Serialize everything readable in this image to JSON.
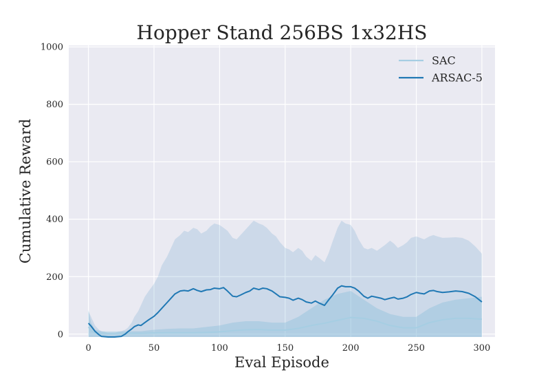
{
  "colors": {
    "figure_background": "#ffffff",
    "plot_background": "#eaeaf2",
    "grid": "#ffffff",
    "text": "#262626"
  },
  "chart_data": {
    "type": "line",
    "title": "Hopper Stand 256BS 1x32HS",
    "xlabel": "Eval Episode",
    "ylabel": "Cumulative Reward",
    "xlim": [
      -15,
      310
    ],
    "ylim": [
      -10,
      1005
    ],
    "xticks": [
      0,
      50,
      100,
      150,
      200,
      250,
      300
    ],
    "yticks": [
      0,
      200,
      400,
      600,
      800,
      1000
    ],
    "grid": true,
    "legend_position": "top-right",
    "series": [
      {
        "name": "SAC",
        "color": "#a6cee3",
        "band_color": "#a6cee3",
        "band_opacity": 0.45,
        "x": [
          0,
          2,
          5,
          10,
          15,
          20,
          25,
          30,
          40,
          50,
          60,
          70,
          80,
          90,
          100,
          110,
          120,
          130,
          140,
          150,
          160,
          170,
          180,
          190,
          200,
          210,
          220,
          230,
          240,
          250,
          260,
          270,
          280,
          290,
          300
        ],
        "mean": [
          25,
          12,
          4,
          3,
          3,
          3,
          3,
          3,
          3,
          4,
          5,
          5,
          5,
          6,
          8,
          12,
          15,
          16,
          14,
          14,
          20,
          30,
          38,
          48,
          58,
          55,
          45,
          30,
          22,
          22,
          40,
          50,
          55,
          55,
          52
        ],
        "lower": [
          -10,
          -10,
          -10,
          -10,
          -10,
          -10,
          -10,
          -10,
          -10,
          -10,
          -10,
          -10,
          -10,
          -10,
          -10,
          -10,
          -10,
          -10,
          -10,
          -10,
          -10,
          -10,
          -10,
          -10,
          -10,
          -10,
          -10,
          -10,
          -10,
          -10,
          -10,
          -10,
          -10,
          -10,
          -10
        ],
        "upper": [
          85,
          40,
          15,
          10,
          10,
          10,
          10,
          10,
          10,
          15,
          18,
          20,
          20,
          25,
          30,
          40,
          45,
          45,
          40,
          40,
          60,
          90,
          120,
          140,
          150,
          120,
          90,
          70,
          60,
          60,
          90,
          110,
          120,
          125,
          130
        ]
      },
      {
        "name": "ARSAC-5",
        "color": "#1f78b4",
        "band_color": "#1f78b4",
        "band_opacity": 0.15,
        "x": [
          0,
          2,
          5,
          8,
          10,
          15,
          20,
          25,
          28,
          30,
          33,
          35,
          38,
          40,
          43,
          46,
          50,
          53,
          56,
          60,
          63,
          66,
          70,
          73,
          76,
          80,
          83,
          86,
          90,
          93,
          96,
          100,
          103,
          106,
          110,
          113,
          116,
          120,
          123,
          126,
          130,
          133,
          136,
          140,
          143,
          146,
          150,
          153,
          156,
          160,
          163,
          166,
          170,
          173,
          176,
          180,
          183,
          186,
          190,
          193,
          196,
          200,
          203,
          206,
          210,
          213,
          216,
          220,
          223,
          226,
          230,
          233,
          236,
          240,
          243,
          246,
          250,
          253,
          256,
          260,
          263,
          266,
          270,
          275,
          280,
          285,
          290,
          295,
          300
        ],
        "mean": [
          38,
          28,
          10,
          -2,
          -8,
          -15,
          -15,
          -8,
          0,
          8,
          18,
          26,
          32,
          30,
          40,
          50,
          62,
          75,
          90,
          110,
          125,
          140,
          150,
          152,
          150,
          158,
          152,
          148,
          154,
          155,
          160,
          158,
          162,
          150,
          132,
          130,
          136,
          145,
          150,
          160,
          155,
          160,
          158,
          150,
          140,
          130,
          128,
          125,
          118,
          125,
          120,
          112,
          108,
          115,
          108,
          100,
          118,
          135,
          160,
          168,
          165,
          165,
          160,
          150,
          132,
          125,
          132,
          128,
          125,
          120,
          125,
          128,
          122,
          125,
          130,
          138,
          145,
          142,
          140,
          150,
          152,
          148,
          145,
          147,
          150,
          148,
          142,
          130,
          112
        ],
        "lower": [
          -10,
          -10,
          -10,
          -10,
          -10,
          -10,
          -10,
          -10,
          -10,
          -10,
          -10,
          -10,
          -10,
          -10,
          -10,
          -10,
          -10,
          -10,
          -10,
          -10,
          -10,
          -10,
          -10,
          -10,
          -10,
          -10,
          -10,
          -10,
          -10,
          -10,
          -10,
          -10,
          -10,
          -10,
          -10,
          -10,
          -10,
          -10,
          -10,
          -10,
          -10,
          -10,
          -10,
          -10,
          -10,
          -10,
          -10,
          -10,
          -10,
          -10,
          -10,
          -10,
          -10,
          -10,
          -10,
          -10,
          -10,
          -10,
          -10,
          -10,
          -10,
          -10,
          -10,
          -10,
          -10,
          -10,
          -10,
          -10,
          -10,
          -10,
          -10,
          -10,
          -10,
          -10,
          -10,
          -10,
          -10,
          -10,
          -10,
          -10,
          -10,
          -10,
          -10,
          -10,
          -10,
          -10,
          -10,
          -10,
          -10
        ],
        "upper": [
          80,
          60,
          30,
          15,
          10,
          5,
          5,
          10,
          15,
          22,
          40,
          60,
          80,
          100,
          130,
          150,
          175,
          200,
          240,
          270,
          300,
          330,
          345,
          360,
          355,
          370,
          365,
          350,
          360,
          375,
          385,
          380,
          370,
          360,
          335,
          330,
          345,
          365,
          380,
          395,
          385,
          380,
          370,
          350,
          340,
          320,
          300,
          295,
          285,
          300,
          290,
          270,
          255,
          275,
          265,
          250,
          280,
          320,
          370,
          395,
          385,
          380,
          360,
          330,
          300,
          295,
          300,
          290,
          300,
          310,
          325,
          315,
          300,
          310,
          320,
          335,
          340,
          335,
          330,
          340,
          345,
          340,
          335,
          336,
          337,
          335,
          325,
          305,
          280
        ]
      }
    ]
  }
}
